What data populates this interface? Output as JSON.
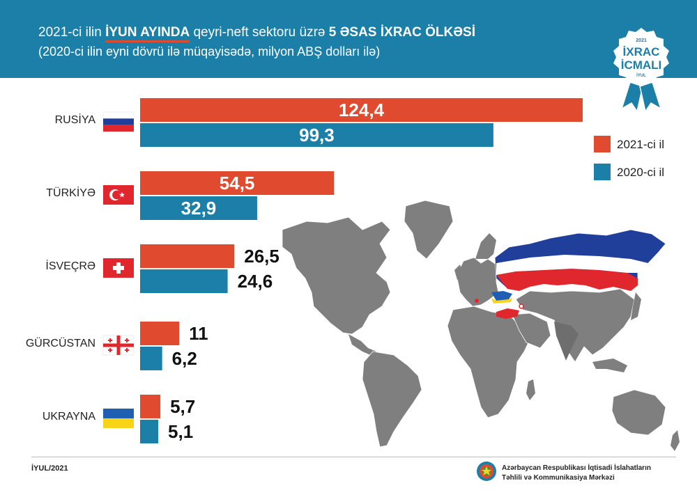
{
  "header": {
    "title_part1": "2021-ci ilin ",
    "title_highlight": "İYUN AYINDA",
    "title_part2": " qeyri-neft sektoru üzrə ",
    "title_bold": "5 ƏSAS İXRAC ÖLKƏSİ",
    "subtitle": "(2020-ci ilin eyni dövrü ilə müqayisədə, milyon ABŞ dolları ilə)"
  },
  "badge": {
    "year": "2021",
    "line1": "İXRAC",
    "line2": "İCMALI",
    "month": "İYUL"
  },
  "footer": {
    "date": "İYUL/2021",
    "org_line1": "Azərbaycan Respublikası İqtisadi İslahatların",
    "org_line2": "Təhlili və Kommunikasiya Mərkəzi"
  },
  "colors": {
    "header": "#1b7fa8",
    "y2021": "#e04a2f",
    "y2020": "#1b7fa8",
    "map_land": "#7f7f7f"
  },
  "chart_data": {
    "type": "bar",
    "orientation": "horizontal",
    "categories": [
      "RUSİYA",
      "TÜRKİYƏ",
      "İSVEÇRƏ",
      "GÜRCÜSTAN",
      "UKRAYNA"
    ],
    "series": [
      {
        "name": "2021-ci il",
        "values": [
          124.4,
          54.5,
          26.5,
          11,
          5.7
        ],
        "labels": [
          "124,4",
          "54,5",
          "26,5",
          "11",
          "5,7"
        ]
      },
      {
        "name": "2020-ci il",
        "values": [
          99.3,
          32.9,
          24.6,
          6.2,
          5.1
        ],
        "labels": [
          "99,3",
          "32,9",
          "24,6",
          "6,2",
          "5,1"
        ]
      }
    ],
    "legend_position": "right",
    "title": "",
    "xlabel": "",
    "ylabel": ""
  }
}
